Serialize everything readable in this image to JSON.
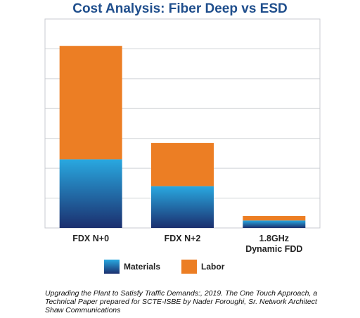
{
  "chart_data": {
    "type": "bar",
    "stacked": true,
    "title": "Cost Analysis: Fiber Deep vs ESD",
    "categories": [
      "FDX N+0",
      "FDX N+2",
      "1.8GHz Dynamic FDD"
    ],
    "category_lines": [
      [
        "FDX N+0"
      ],
      [
        "FDX N+2"
      ],
      [
        "1.8GHz",
        "Dynamic FDD"
      ]
    ],
    "series": [
      {
        "name": "Materials",
        "values": [
          2.3,
          1.4,
          0.25
        ]
      },
      {
        "name": "Labor",
        "values": [
          3.8,
          1.45,
          0.15
        ]
      }
    ],
    "ylim": [
      0,
      7
    ],
    "y_tick_labels": "none",
    "grid": true,
    "legend_position": "bottom",
    "colors": {
      "materials_top": "#29a8e0",
      "materials_bottom": "#1b2f6e",
      "labor": "#ec7e24",
      "title": "#1f4e8c",
      "grid": "#cfd2d6"
    }
  },
  "caption": [
    "Upgrading the Plant to Satisfy Traffic Demands:, 2019. The One Touch Approach, a",
    "Technical Paper prepared for SCTE-ISBE by Nader Foroughi, Sr. Network Architect",
    "Shaw Communications"
  ]
}
